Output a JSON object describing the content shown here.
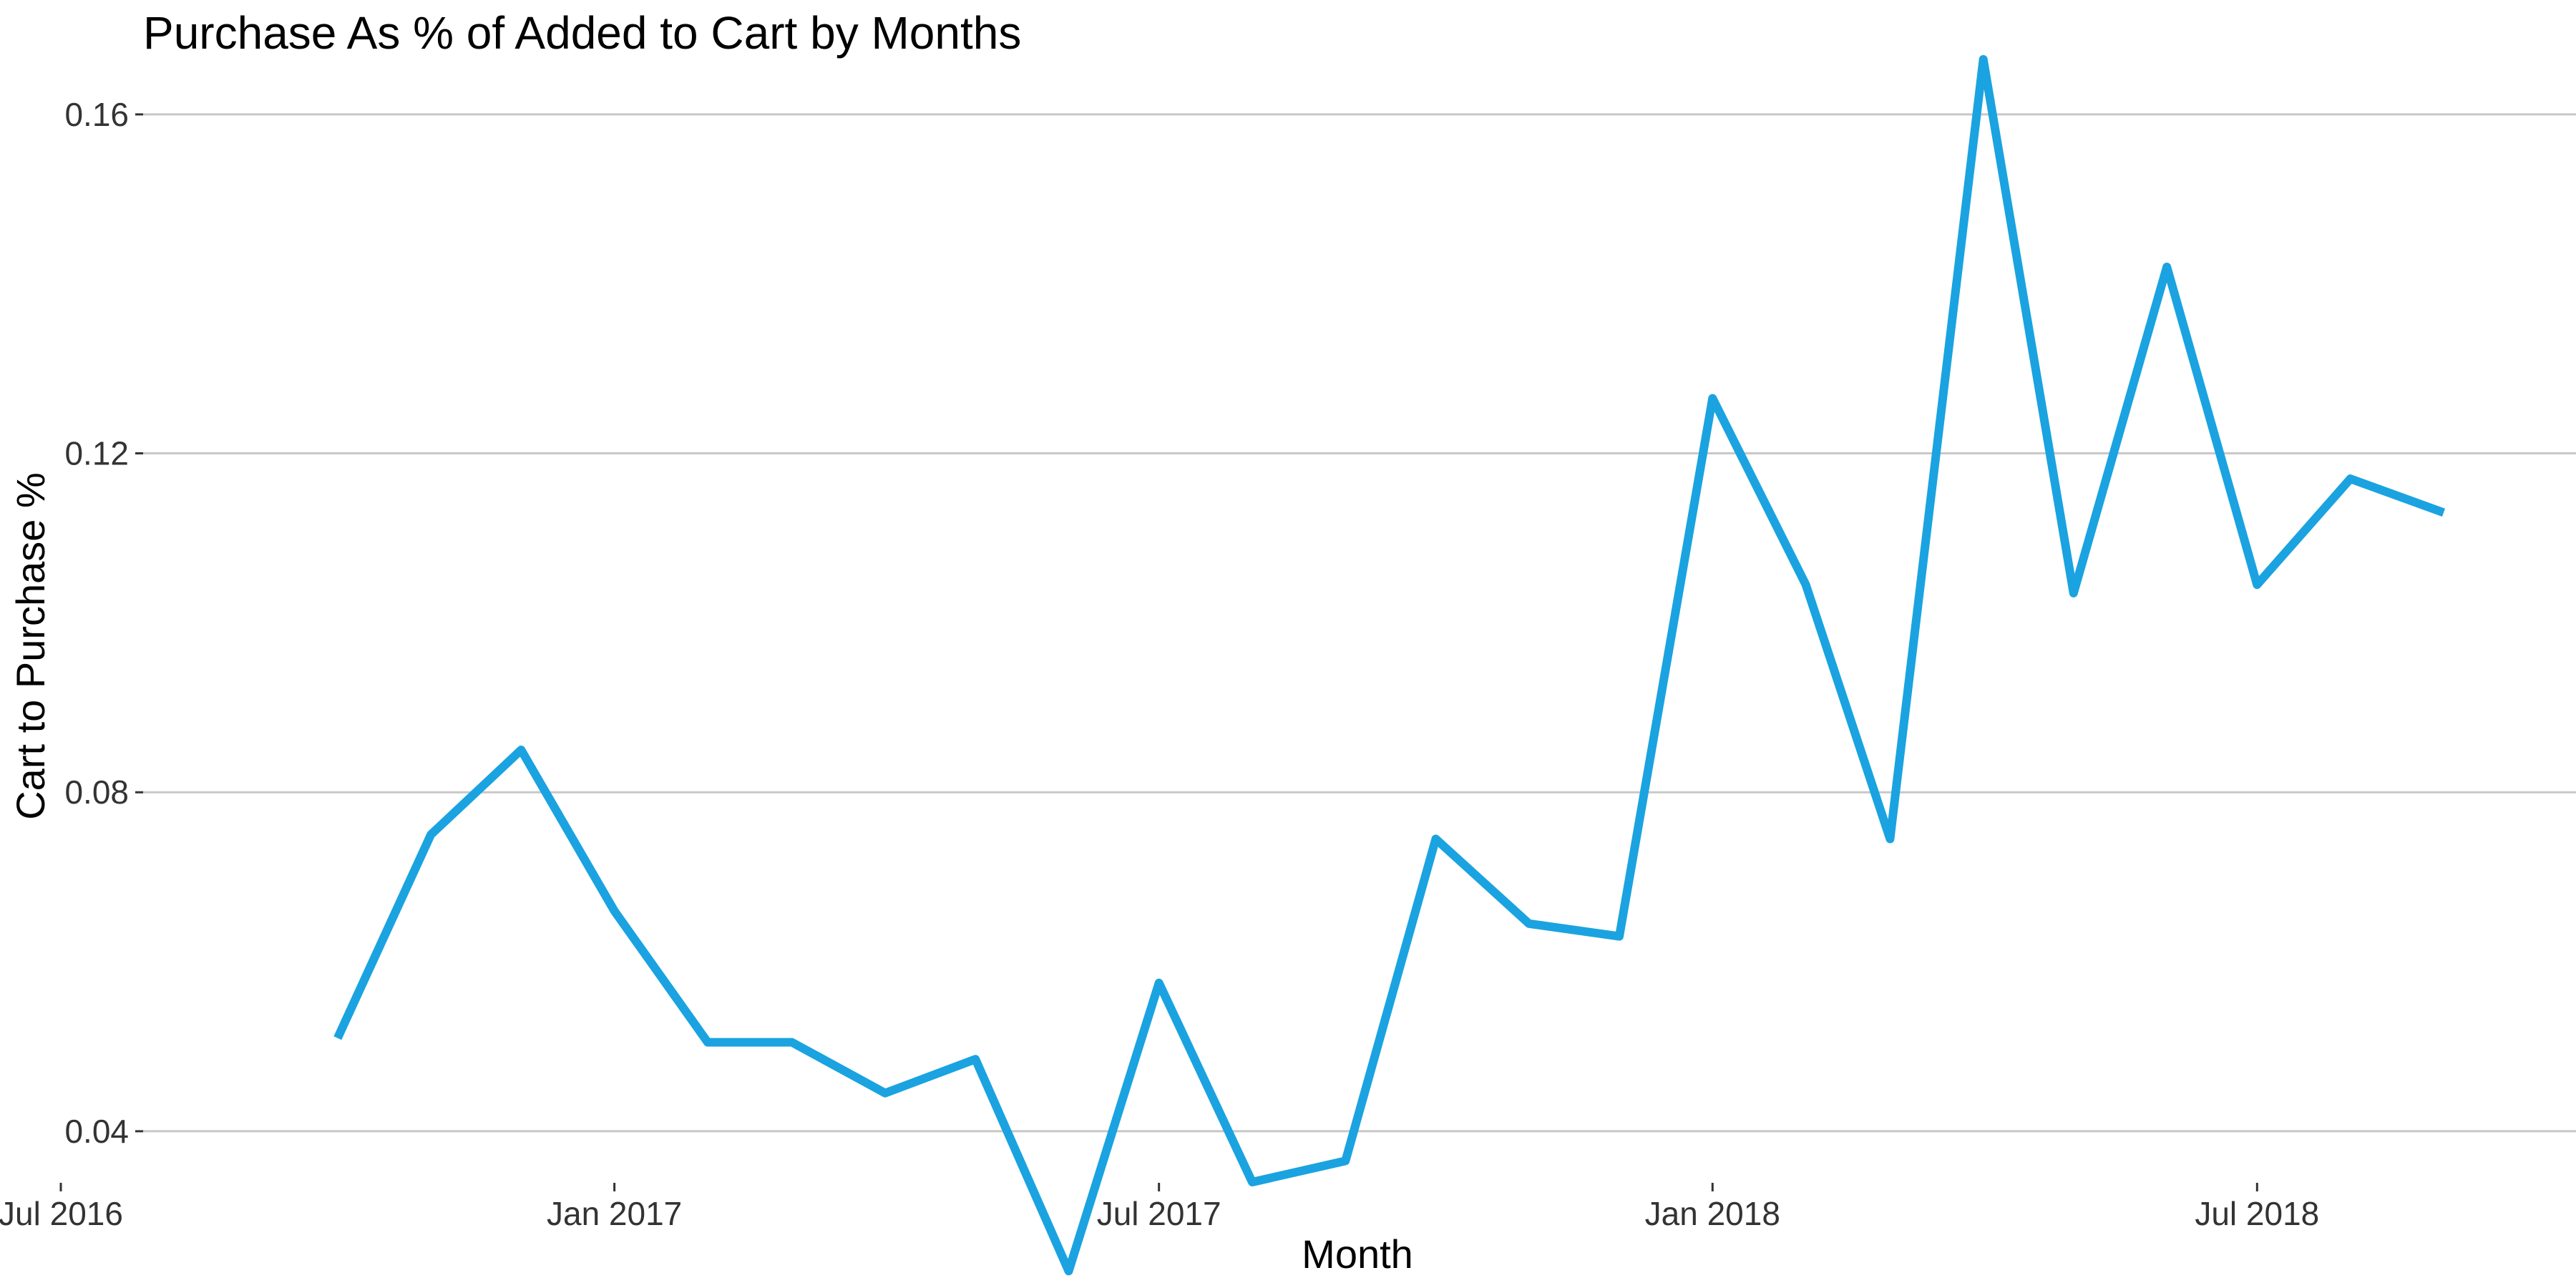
{
  "chart_data": {
    "type": "line",
    "title": "Purchase As % of Added to Cart by Months",
    "xlabel": "Month",
    "ylabel": "Cart to Purchase %",
    "x_ticks": [
      "Jul 2016",
      "Jan 2017",
      "Jul 2017",
      "Jan 2018",
      "Jul 2018"
    ],
    "y_ticks": [
      0.04,
      0.08,
      0.12,
      0.16
    ],
    "y_tick_labels": [
      "0.04",
      "0.08",
      "0.12",
      "0.16"
    ],
    "ylim": [
      0.0215,
      0.1735
    ],
    "xlim": [
      "2016-07-01",
      "2018-10-15"
    ],
    "grid": "horizontal",
    "legend": "none",
    "series": [
      {
        "color": "#1aa3e0",
        "x": [
          "2016-10-01",
          "2016-11-01",
          "2016-12-01",
          "2017-01-01",
          "2017-02-01",
          "2017-03-01",
          "2017-04-01",
          "2017-05-01",
          "2017-06-01",
          "2017-07-01",
          "2017-08-01",
          "2017-09-01",
          "2017-10-01",
          "2017-11-01",
          "2017-12-01",
          "2018-01-01",
          "2018-02-01",
          "2018-03-01",
          "2018-04-01",
          "2018-05-01",
          "2018-06-01",
          "2018-07-01",
          "2018-08-01",
          "2018-09-01"
        ],
        "values": [
          0.051,
          0.075,
          0.085,
          0.066,
          0.0505,
          0.0505,
          0.0445,
          0.0485,
          0.0235,
          0.0575,
          0.034,
          0.0365,
          0.0745,
          0.0645,
          0.063,
          0.1265,
          0.1045,
          0.0745,
          0.1665,
          0.1035,
          0.142,
          0.1045,
          0.117,
          0.113
        ]
      }
    ]
  }
}
